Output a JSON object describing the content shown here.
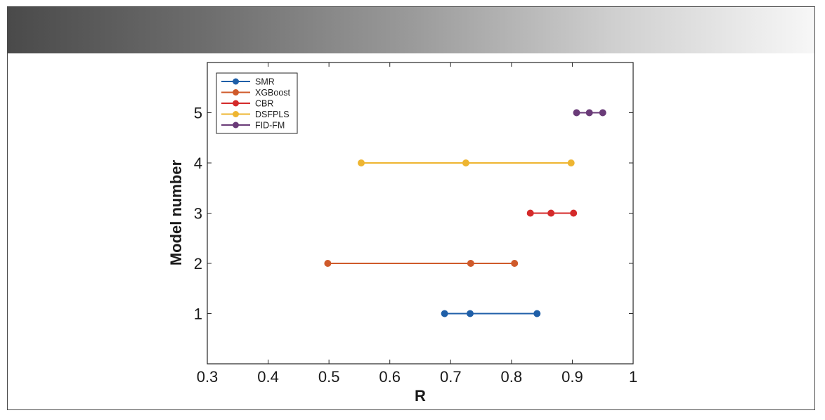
{
  "chart_data": {
    "type": "line",
    "xlabel": "R",
    "ylabel": "Model number",
    "xlim": [
      0.3,
      1
    ],
    "ylim": [
      0,
      6
    ],
    "x_ticks": [
      "0.3",
      "0.4",
      "0.5",
      "0.6",
      "0.7",
      "0.8",
      "0.9",
      "1"
    ],
    "y_ticks": [
      "1",
      "2",
      "3",
      "4",
      "5"
    ],
    "legend_position": "top-left",
    "grid": false,
    "series": [
      {
        "name": "SMR",
        "color": "#1f5fa8",
        "points": [
          {
            "x": 0.69,
            "y": 1
          },
          {
            "x": 0.732,
            "y": 1
          },
          {
            "x": 0.842,
            "y": 1
          }
        ]
      },
      {
        "name": "XGBoost",
        "color": "#cf5a2a",
        "points": [
          {
            "x": 0.498,
            "y": 2
          },
          {
            "x": 0.733,
            "y": 2
          },
          {
            "x": 0.805,
            "y": 2
          }
        ]
      },
      {
        "name": "CBR",
        "color": "#d42a2a",
        "points": [
          {
            "x": 0.831,
            "y": 3
          },
          {
            "x": 0.865,
            "y": 3
          },
          {
            "x": 0.902,
            "y": 3
          }
        ]
      },
      {
        "name": "DSFPLS",
        "color": "#eeb531",
        "points": [
          {
            "x": 0.553,
            "y": 4
          },
          {
            "x": 0.725,
            "y": 4
          },
          {
            "x": 0.898,
            "y": 4
          }
        ]
      },
      {
        "name": "FID-FM",
        "color": "#6a3b78",
        "points": [
          {
            "x": 0.907,
            "y": 5
          },
          {
            "x": 0.928,
            "y": 5
          },
          {
            "x": 0.95,
            "y": 5
          }
        ]
      }
    ]
  }
}
